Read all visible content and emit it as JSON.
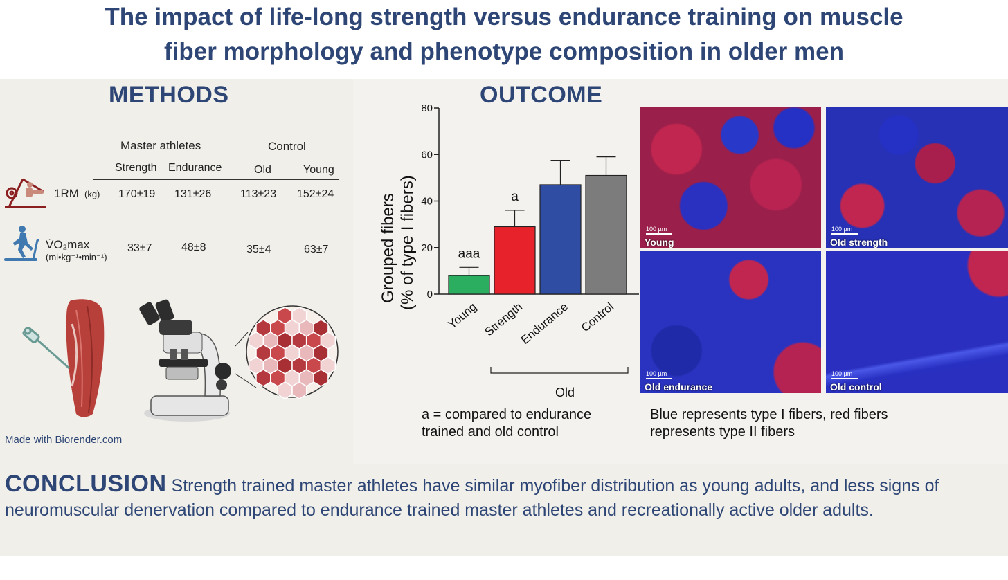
{
  "title": {
    "line1": "The impact of life-long strength versus endurance training on muscle",
    "line2": "fiber morphology and phenotype composition in older men"
  },
  "methods": {
    "heading": "METHODS",
    "table": {
      "group_headers": [
        "Master athletes",
        "Control"
      ],
      "columns": [
        "Strength",
        "Endurance",
        "Old",
        "Young"
      ],
      "rows": [
        {
          "label": "1RM",
          "unit": "(kg)",
          "values": [
            "170±19",
            "131±26",
            "113±23",
            "152±24"
          ]
        },
        {
          "label": "V̇O₂max",
          "unit": "(ml•kg⁻¹•min⁻¹)",
          "values": [
            "33±7",
            "48±8",
            "35±4",
            "63±7"
          ]
        }
      ]
    },
    "credit": "Made with Biorender.com"
  },
  "outcome": {
    "heading": "OUTCOME",
    "caption_left": [
      "a = compared to endurance",
      "trained and old control"
    ],
    "caption_right": [
      "Blue represents type I fibers, red fibers",
      "represents type II fibers"
    ],
    "micrographs": [
      {
        "label": "Young",
        "scale": "100 µm"
      },
      {
        "label": "Old strength",
        "scale": "100 µm"
      },
      {
        "label": "Old endurance",
        "scale": "100 µm"
      },
      {
        "label": "Old control",
        "scale": "100 µm"
      }
    ]
  },
  "chart_data": {
    "type": "bar",
    "ylabel": [
      "Grouped fibers",
      "(% of type I fibers)"
    ],
    "ylim": [
      0,
      80
    ],
    "yticks": [
      0,
      20,
      40,
      60,
      80
    ],
    "categories": [
      "Young",
      "Strength",
      "Endurance",
      "Control"
    ],
    "values": [
      8,
      29,
      47,
      51
    ],
    "errors": [
      3.5,
      7,
      10.5,
      8
    ],
    "colors": [
      "#2cae60",
      "#e8222a",
      "#2f4da2",
      "#7c7c7c"
    ],
    "annotations": [
      "aaa",
      "a",
      "",
      ""
    ],
    "group_bracket_label": "Old"
  },
  "conclusion": {
    "keyword": "CONCLUSION",
    "text": "Strength trained master athletes have similar myofiber distribution as young adults, and less signs of neuromuscular denervation compared to endurance trained master athletes and recreationally active older adults."
  }
}
